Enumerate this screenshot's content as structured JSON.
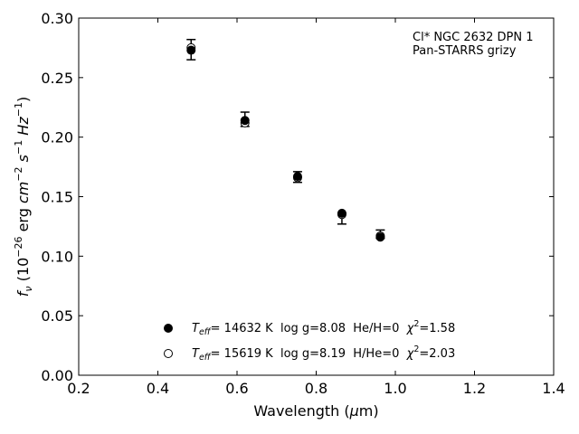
{
  "chart_data": {
    "type": "scatter",
    "title": "",
    "xlabel": {
      "base": "Wavelength (",
      "sym": "μ",
      "rest": "m)"
    },
    "ylabel": {
      "f": "f",
      "sub": "ν",
      "p1": " (10",
      "e1": "−26",
      "p2": " erg ",
      "cm": "cm",
      "e2": "−2",
      "s": "s",
      "e3": "−1",
      "hz": "Hz",
      "e4": "−1",
      "close": ")"
    },
    "xlim": [
      0.2,
      1.4
    ],
    "ylim": [
      0.0,
      0.3
    ],
    "xticks": [
      0.2,
      0.4,
      0.6,
      0.8,
      1.0,
      1.2,
      1.4
    ],
    "xtick_labels": [
      "0.2",
      "0.4",
      "0.6",
      "0.8",
      "1.0",
      "1.2",
      "1.4"
    ],
    "yticks": [
      0.0,
      0.05,
      0.1,
      0.15,
      0.2,
      0.25,
      0.3
    ],
    "ytick_labels": [
      "0.00",
      "0.05",
      "0.10",
      "0.15",
      "0.20",
      "0.25",
      "0.30"
    ],
    "annotation": [
      "Cl* NGC 2632 DPN 1",
      "Pan-STARRS grizy"
    ],
    "observed": {
      "x": [
        0.484,
        0.62,
        0.753,
        0.865,
        0.962
      ],
      "y": [
        0.273,
        0.215,
        0.166,
        0.133,
        0.117
      ],
      "yerr_low": [
        0.008,
        0.006,
        0.004,
        0.006,
        0.002
      ],
      "yerr_high": [
        0.009,
        0.006,
        0.005,
        0.003,
        0.005
      ]
    },
    "series": [
      {
        "name": "Teff= 14632 K  log g=8.08  He/H=0  χ2=1.58",
        "marker": "filled-circle",
        "x": [
          0.484,
          0.62,
          0.753,
          0.865,
          0.962
        ],
        "y": [
          0.273,
          0.214,
          0.167,
          0.136,
          0.116
        ]
      },
      {
        "name": "Teff= 15619 K  log g=8.19  H/He=0  χ2=2.03",
        "marker": "open-circle",
        "x": [
          0.484,
          0.62,
          0.753,
          0.865,
          0.962
        ],
        "y": [
          0.275,
          0.212,
          0.166,
          0.135,
          0.117
        ]
      }
    ],
    "legend_placement": "lower-center",
    "legend": [
      {
        "t": "T",
        "sub": "eff",
        "a": "= 14632 K  log g=8.08  He/H=0  ",
        "chi": "χ",
        "sup": "2",
        "b": "=1.58"
      },
      {
        "t": "T",
        "sub": "eff",
        "a": "= 15619 K  log g=8.19  H/He=0  ",
        "chi": "χ",
        "sup": "2",
        "b": "=2.03"
      }
    ],
    "grid": false
  }
}
